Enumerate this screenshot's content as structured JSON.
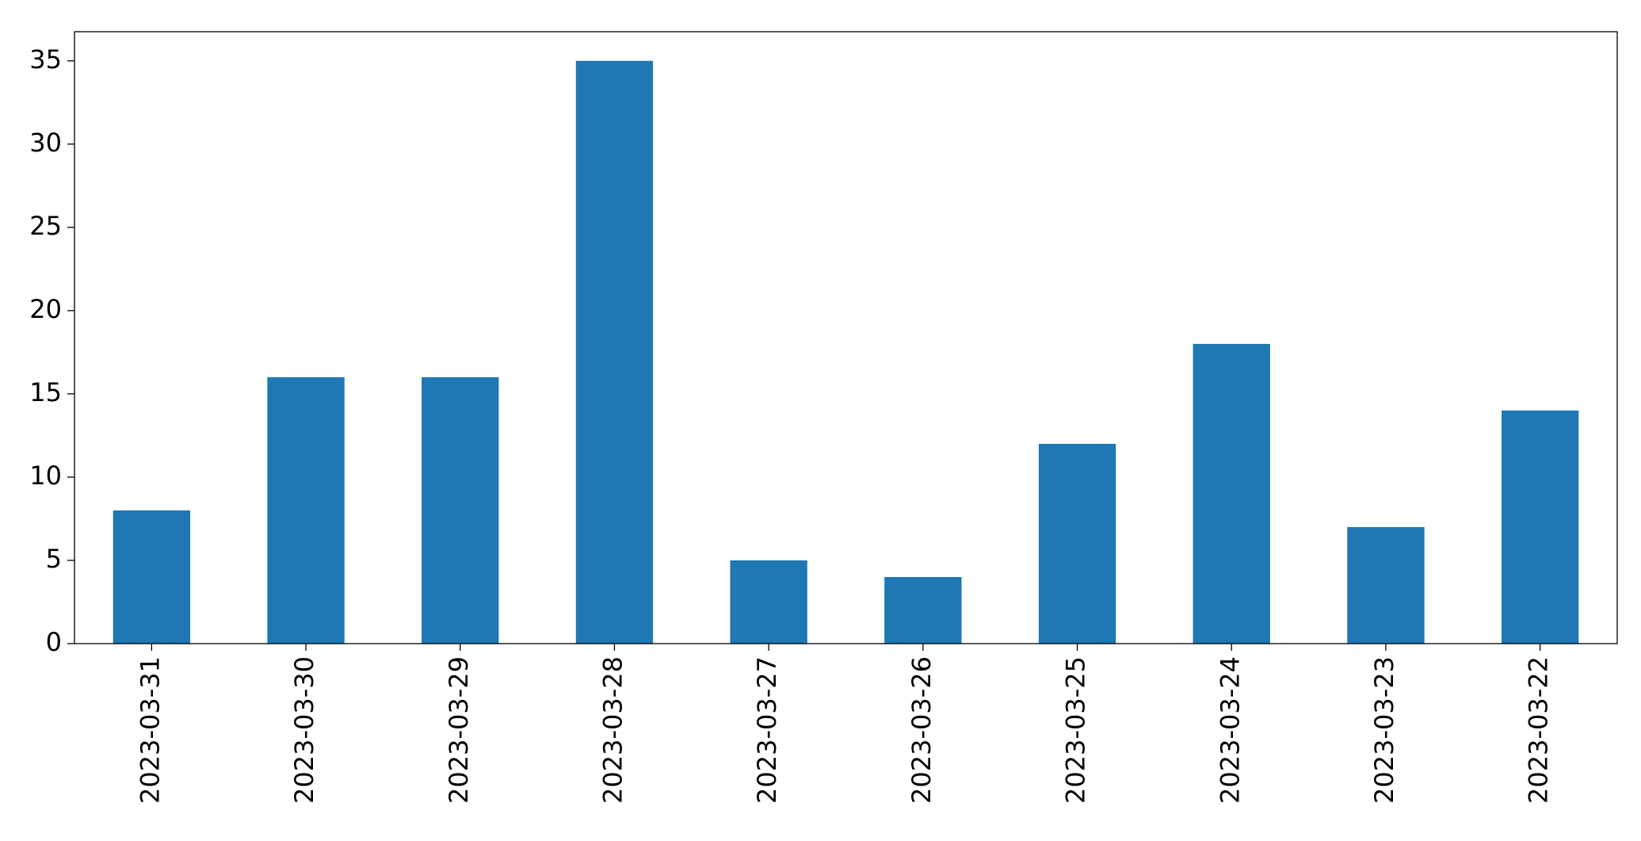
{
  "chart_data": {
    "type": "bar",
    "categories": [
      "2023-03-31",
      "2023-03-30",
      "2023-03-29",
      "2023-03-28",
      "2023-03-27",
      "2023-03-26",
      "2023-03-25",
      "2023-03-24",
      "2023-03-23",
      "2023-03-22"
    ],
    "values": [
      8,
      16,
      16,
      35,
      5,
      4,
      12,
      18,
      7,
      14
    ],
    "color": "#1f77b4",
    "ylim": [
      0,
      36.75
    ],
    "yticks": [
      0,
      5,
      10,
      15,
      20,
      25,
      30,
      35
    ],
    "grid": false
  }
}
